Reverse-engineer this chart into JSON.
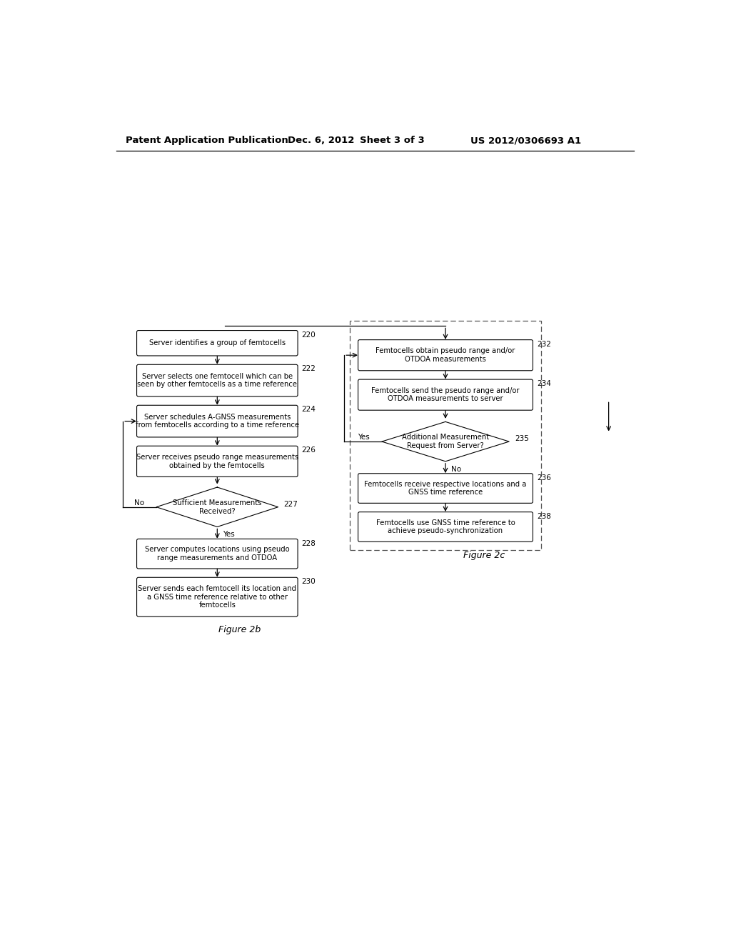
{
  "bg_color": "#ffffff",
  "header_text": "Patent Application Publication",
  "header_date": "Dec. 6, 2012",
  "header_sheet": "Sheet 3 of 3",
  "header_patent": "US 2012/0306693 A1",
  "fig2b_label": "Figure 2b",
  "fig2c_label": "Figure 2c",
  "left_boxes": [
    {
      "id": "220",
      "label": "Server identifies a group of femtocells",
      "type": "rect",
      "num": "220"
    },
    {
      "id": "222",
      "label": "Server selects one femtocell which can be\nseen by other femtocells as a time reference",
      "type": "rect",
      "num": "222"
    },
    {
      "id": "224",
      "label": "Server schedules A-GNSS measurements\nfrom femtocells according to a time reference",
      "type": "rect",
      "num": "224"
    },
    {
      "id": "226",
      "label": "Server receives pseudo range measurements\nobtained by the femtocells",
      "type": "rect",
      "num": "226"
    },
    {
      "id": "227",
      "label": "Sufficient Measurements\nReceived?",
      "type": "diamond",
      "num": "227"
    },
    {
      "id": "228",
      "label": "Server computes locations using pseudo\nrange measurements and OTDOA",
      "type": "rect",
      "num": "228"
    },
    {
      "id": "230",
      "label": "Server sends each femtocell its location and\na GNSS time reference relative to other\nfemtocells",
      "type": "rect",
      "num": "230"
    }
  ],
  "right_boxes": [
    {
      "id": "232",
      "label": "Femtocells obtain pseudo range and/or\nOTDOA measurements",
      "type": "rect",
      "num": "232"
    },
    {
      "id": "234",
      "label": "Femtocells send the pseudo range and/or\nOTDOA measurements to server",
      "type": "rect",
      "num": "234"
    },
    {
      "id": "235",
      "label": "Additional Measurement\nRequest from Server?",
      "type": "diamond",
      "num": "235"
    },
    {
      "id": "236",
      "label": "Femtocells receive respective locations and a\nGNSS time reference",
      "type": "rect",
      "num": "236"
    },
    {
      "id": "238",
      "label": "Femtocells use GNSS time reference to\nachieve pseudo-synchronization",
      "type": "rect",
      "num": "238"
    }
  ]
}
